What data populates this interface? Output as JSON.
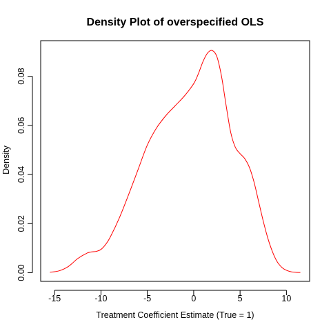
{
  "chart_data": {
    "type": "line",
    "title": "Density Plot of overspecified OLS",
    "xlabel": "Treatment Coefficient Estimate (True = 1)",
    "ylabel": "Density",
    "xlim": [
      -16.5,
      12.5
    ],
    "ylim": [
      -0.0035,
      0.0945
    ],
    "x_ticks": [
      -15,
      -10,
      -5,
      0,
      5,
      10
    ],
    "x_tick_labels": [
      "-15",
      "-10",
      "-5",
      "0",
      "5",
      "10"
    ],
    "y_ticks": [
      0.0,
      0.02,
      0.04,
      0.06,
      0.08
    ],
    "y_tick_labels": [
      "0.00",
      "0.02",
      "0.04",
      "0.06",
      "0.08"
    ],
    "grid": false,
    "legend": "none",
    "series": [
      {
        "color": "#ff0000",
        "x": [
          -15.5,
          -14.5,
          -13.5,
          -12.5,
          -11.5,
          -11.0,
          -10.5,
          -10.0,
          -9.5,
          -9.0,
          -8.0,
          -7.0,
          -6.0,
          -5.0,
          -4.0,
          -3.0,
          -2.0,
          -1.0,
          0.0,
          0.5,
          1.0,
          1.5,
          2.0,
          2.5,
          3.0,
          3.5,
          4.0,
          4.5,
          5.0,
          5.5,
          6.0,
          6.5,
          7.0,
          7.5,
          8.0,
          8.5,
          9.0,
          9.5,
          10.0,
          10.5,
          11.0,
          11.5
        ],
        "y": [
          0.0002,
          0.0008,
          0.0026,
          0.0058,
          0.008,
          0.0085,
          0.0087,
          0.0095,
          0.0115,
          0.0145,
          0.0225,
          0.032,
          0.042,
          0.052,
          0.059,
          0.064,
          0.068,
          0.072,
          0.077,
          0.081,
          0.086,
          0.0895,
          0.0905,
          0.088,
          0.08,
          0.068,
          0.057,
          0.051,
          0.0485,
          0.0465,
          0.043,
          0.037,
          0.029,
          0.021,
          0.014,
          0.0085,
          0.0045,
          0.0022,
          0.001,
          0.0004,
          0.0002,
          0.0001
        ]
      }
    ]
  }
}
